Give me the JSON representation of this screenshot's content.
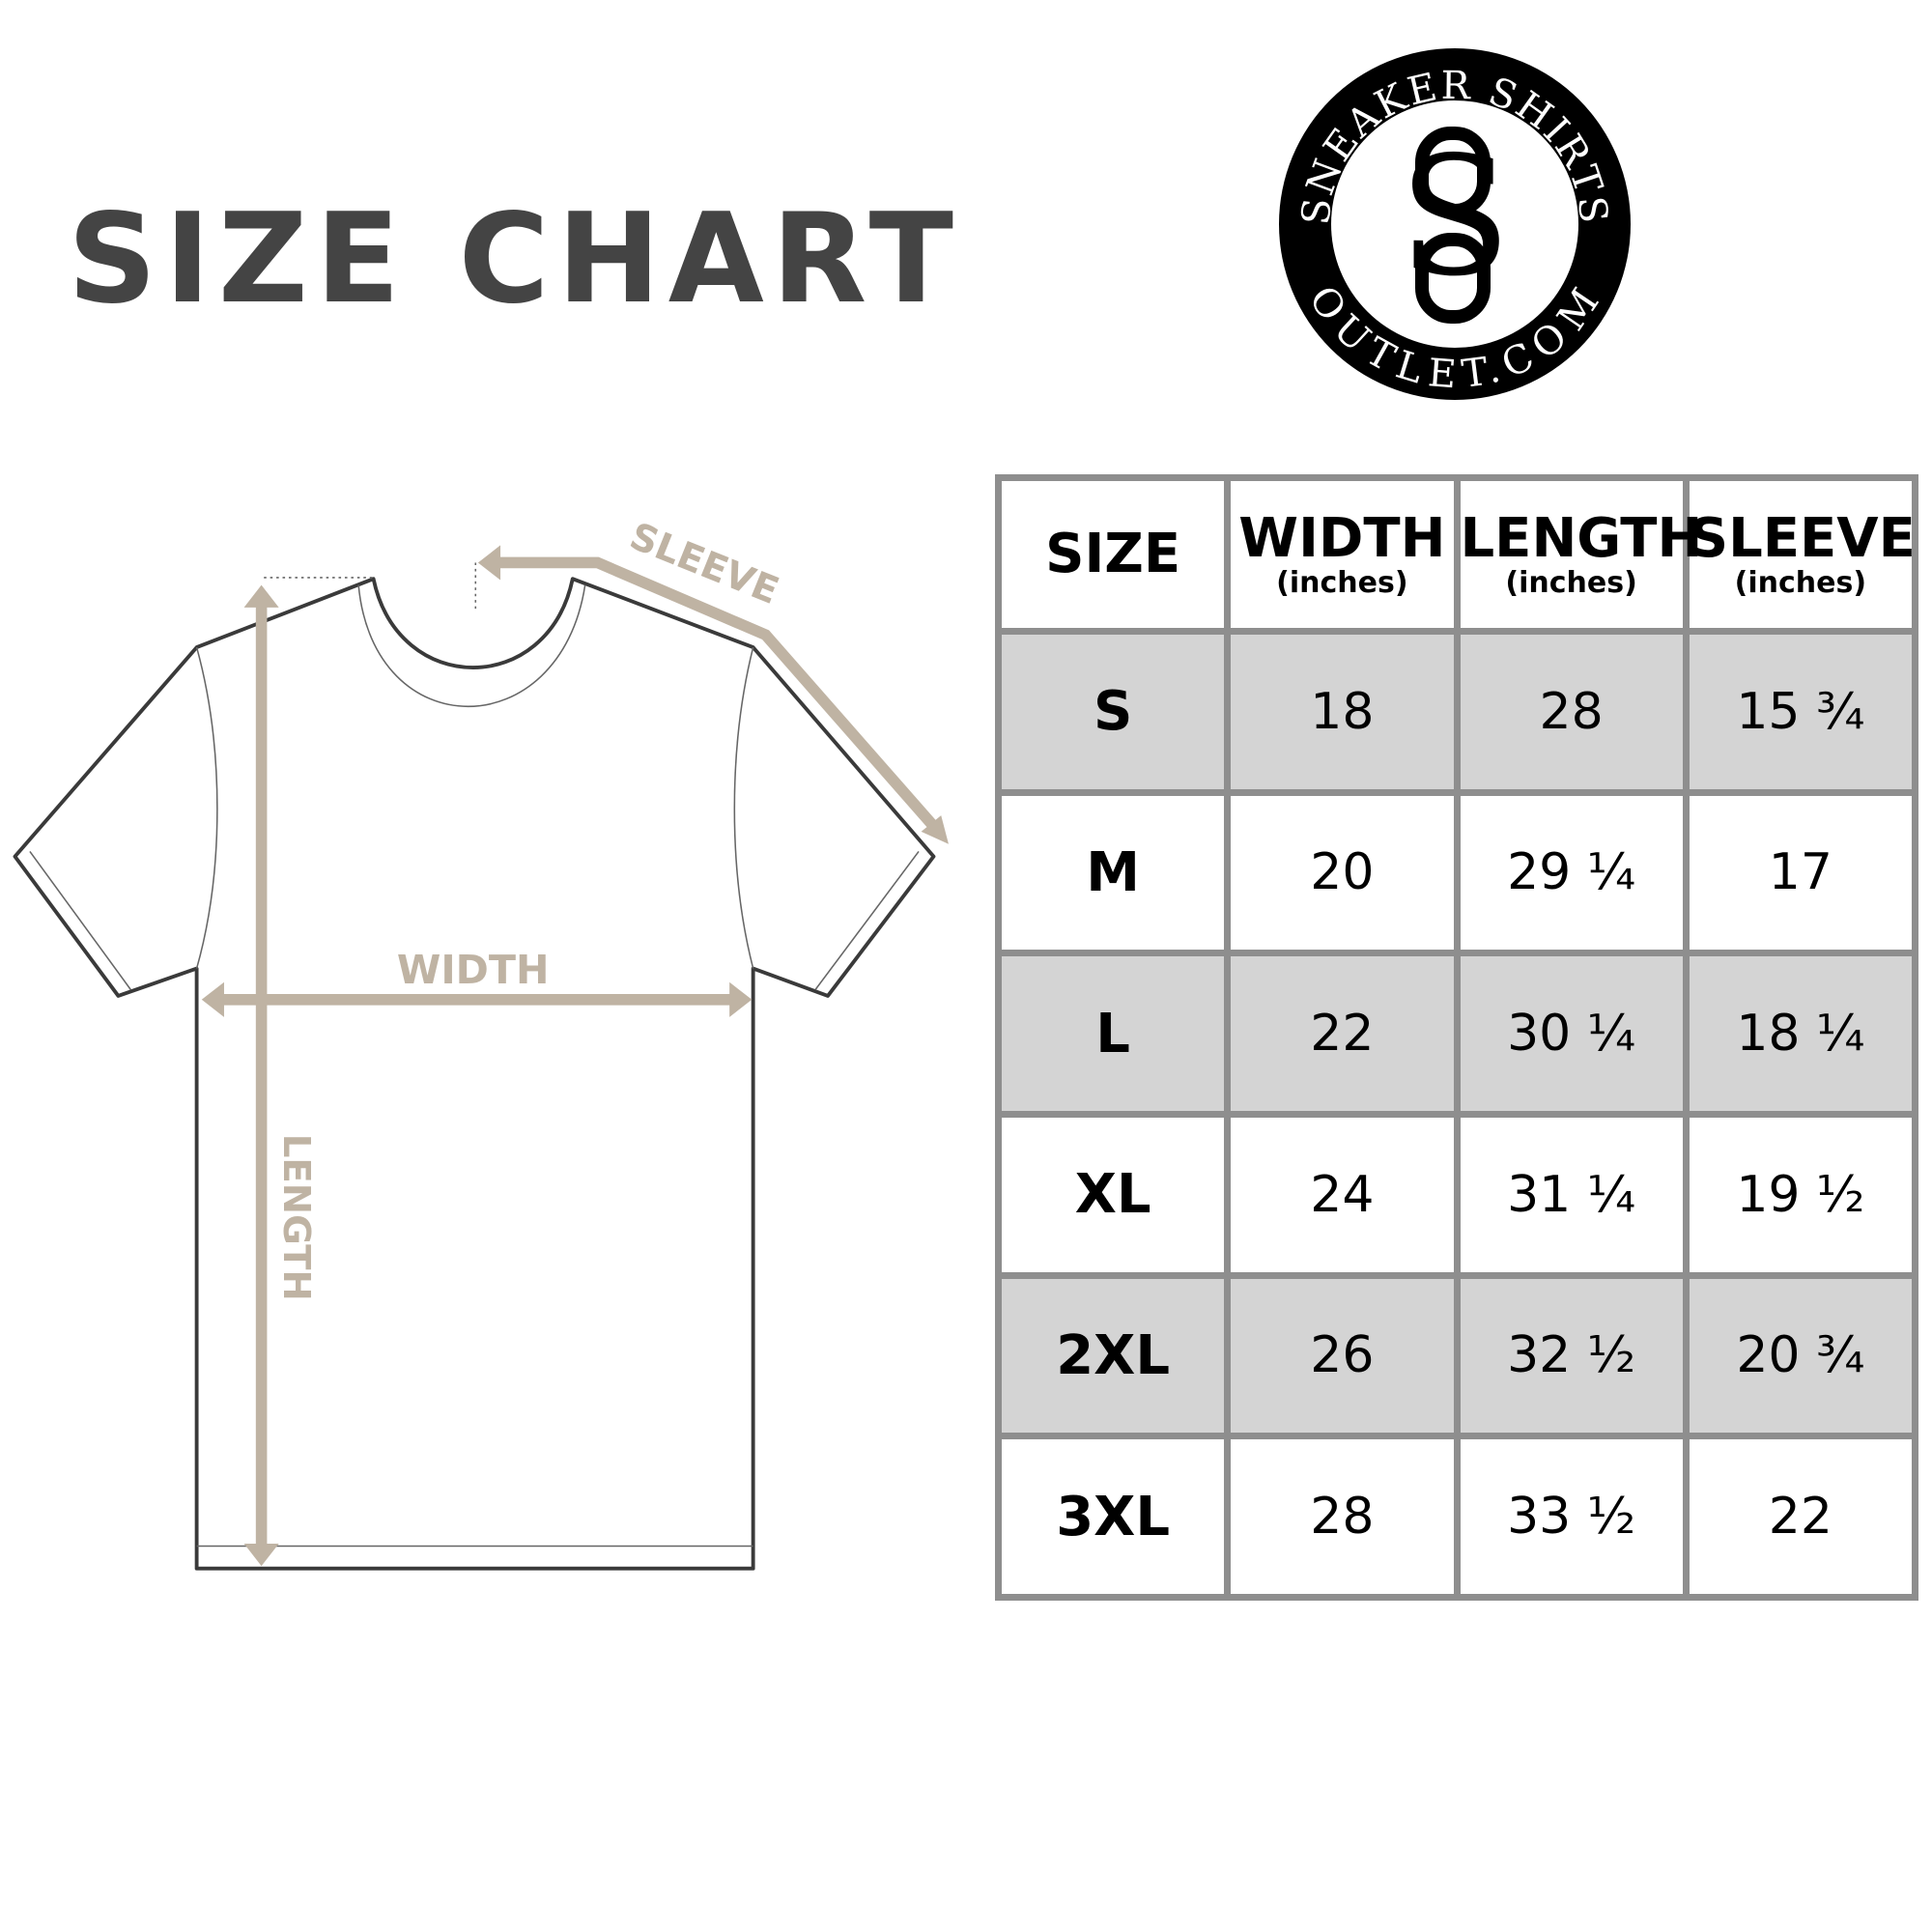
{
  "title": "SIZE CHART",
  "logo": {
    "top_text": "SNEAKER SHIRTS",
    "bottom_text": "OUTLET.COM",
    "monogram": "SO"
  },
  "diagram": {
    "sleeve_label": "SLEEVE",
    "width_label": "WIDTH",
    "length_label": "LENGTH",
    "arrow_color": "#bfb3a3"
  },
  "table": {
    "headers": [
      {
        "label": "SIZE",
        "unit": ""
      },
      {
        "label": "WIDTH",
        "unit": "(inches)"
      },
      {
        "label": "LENGTH",
        "unit": "(inches)"
      },
      {
        "label": "SLEEVE",
        "unit": "(inches)"
      }
    ],
    "rows": [
      [
        "S",
        "18",
        "28",
        "15 ¾"
      ],
      [
        "M",
        "20",
        "29 ¼",
        "17"
      ],
      [
        "L",
        "22",
        "30 ¼",
        "18 ¼"
      ],
      [
        "XL",
        "24",
        "31 ¼",
        "19 ½"
      ],
      [
        "2XL",
        "26",
        "32 ½",
        "20 ¾"
      ],
      [
        "3XL",
        "28",
        "33 ½",
        "22"
      ]
    ],
    "shade_color": "#d4d4d4",
    "border_color": "#8e8e8e"
  }
}
